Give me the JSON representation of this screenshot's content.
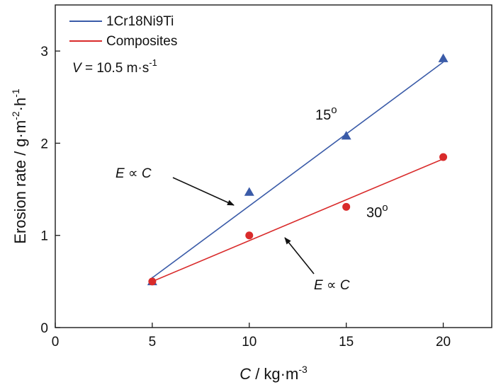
{
  "chart_data": {
    "type": "scatter",
    "x_axis": {
      "label_var": "C",
      "label_unit": " / kg·m",
      "label_exp": "-3",
      "lim": [
        0,
        22.5
      ],
      "ticks": [
        0,
        5,
        10,
        15,
        20
      ]
    },
    "y_axis": {
      "label_main": "Erosion rate / g·m",
      "label_exp1": "-2",
      "label_mid": "·h",
      "label_exp2": "-1",
      "lim": [
        0,
        3.5
      ],
      "ticks": [
        0,
        1,
        2,
        3
      ]
    },
    "legend": {
      "position": "top-left"
    },
    "velocity_note": {
      "var": "V",
      "text": " = 10.5 m·s",
      "exp": "-1"
    },
    "series": [
      {
        "name": "1Cr18Ni9Ti",
        "color": "#3a5ba8",
        "marker": "triangle",
        "angle_label": "15",
        "points": [
          [
            5,
            0.5
          ],
          [
            10,
            1.47
          ],
          [
            15,
            2.08
          ],
          [
            20,
            2.92
          ]
        ],
        "fit": [
          [
            5,
            0.54
          ],
          [
            20,
            2.88
          ]
        ]
      },
      {
        "name": "Composites",
        "color": "#d92b2b",
        "marker": "circle",
        "angle_label": "30",
        "points": [
          [
            5,
            0.5
          ],
          [
            10,
            1.0
          ],
          [
            15,
            1.31
          ],
          [
            20,
            1.85
          ]
        ],
        "fit": [
          [
            5,
            0.5
          ],
          [
            20,
            1.83
          ]
        ]
      }
    ],
    "annotations": [
      {
        "lhs": "E",
        "op": " ∝ ",
        "rhs": "C",
        "points_to_series": "1Cr18Ni9Ti"
      },
      {
        "lhs": "E",
        "op": " ∝ ",
        "rhs": "C",
        "points_to_series": "Composites"
      }
    ],
    "degree_symbol": "o"
  }
}
